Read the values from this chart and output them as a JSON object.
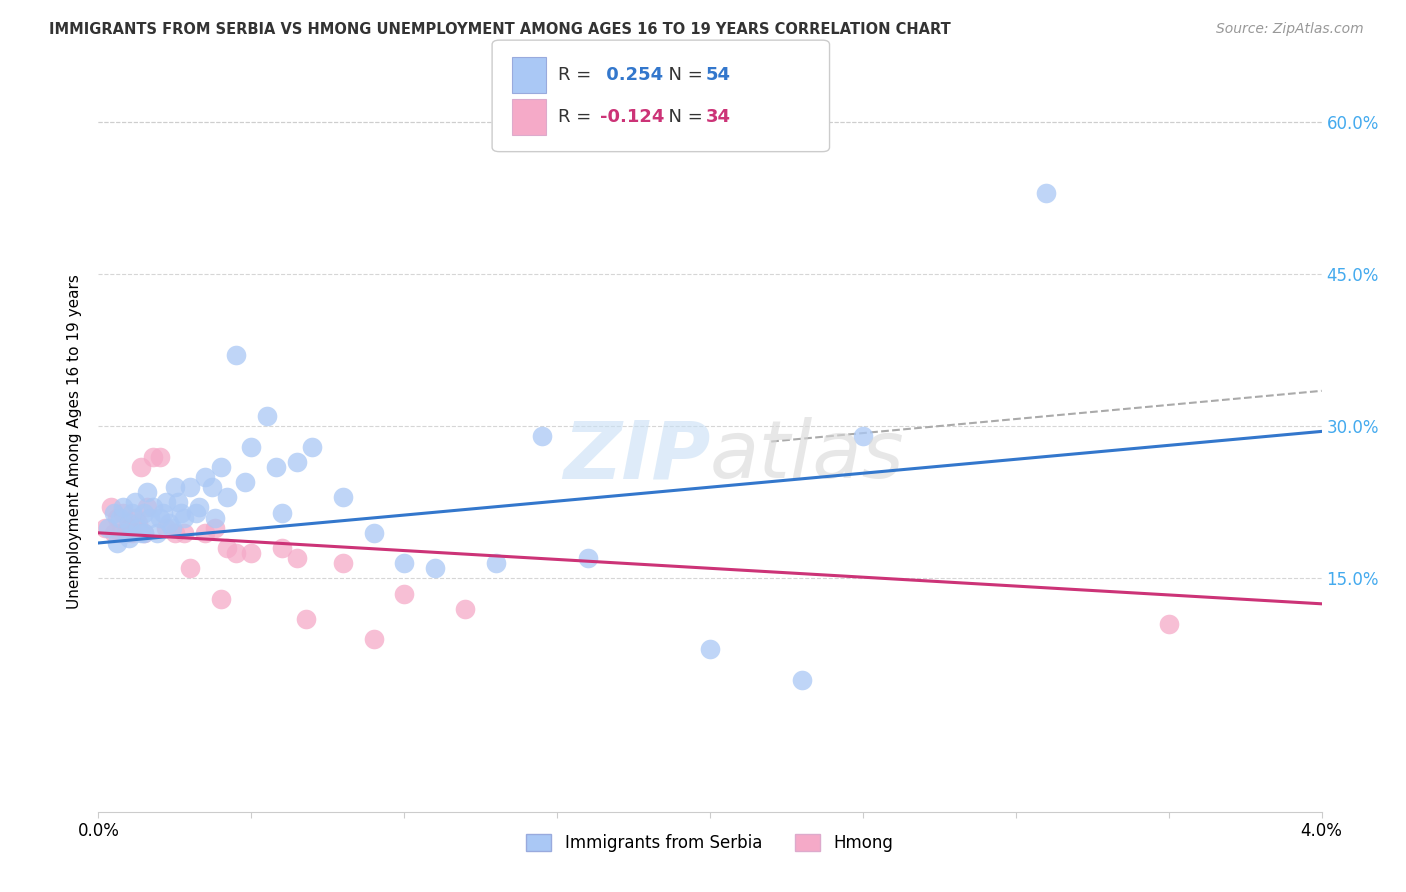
{
  "title": "IMMIGRANTS FROM SERBIA VS HMONG UNEMPLOYMENT AMONG AGES 16 TO 19 YEARS CORRELATION CHART",
  "source": "Source: ZipAtlas.com",
  "ylabel": "Unemployment Among Ages 16 to 19 years",
  "y_ticks": [
    "15.0%",
    "30.0%",
    "45.0%",
    "60.0%"
  ],
  "y_tick_vals": [
    0.15,
    0.3,
    0.45,
    0.6
  ],
  "x_range": [
    0.0,
    0.04
  ],
  "y_range": [
    -0.08,
    0.65
  ],
  "serbia_R": 0.254,
  "serbia_N": 54,
  "hmong_R": -0.124,
  "hmong_N": 34,
  "serbia_color": "#aac8f5",
  "hmong_color": "#f5aac8",
  "serbia_line_color": "#3377cc",
  "hmong_line_color": "#cc3377",
  "serbia_line_y0": 0.185,
  "serbia_line_y1": 0.295,
  "hmong_line_y0": 0.195,
  "hmong_line_y1": 0.125,
  "dash_line_x0": 0.022,
  "dash_line_x1": 0.04,
  "dash_line_y0": 0.285,
  "dash_line_y1": 0.335,
  "serbia_x": [
    0.0003,
    0.0005,
    0.0006,
    0.0007,
    0.0008,
    0.0009,
    0.001,
    0.001,
    0.0011,
    0.0012,
    0.0013,
    0.0014,
    0.0015,
    0.0015,
    0.0016,
    0.0017,
    0.0018,
    0.0019,
    0.002,
    0.0021,
    0.0022,
    0.0023,
    0.0024,
    0.0025,
    0.0026,
    0.0027,
    0.0028,
    0.003,
    0.0032,
    0.0033,
    0.0035,
    0.0037,
    0.0038,
    0.004,
    0.0042,
    0.0045,
    0.0048,
    0.005,
    0.0055,
    0.0058,
    0.006,
    0.0065,
    0.007,
    0.008,
    0.009,
    0.01,
    0.011,
    0.013,
    0.0145,
    0.016,
    0.02,
    0.025,
    0.023,
    0.031
  ],
  "serbia_y": [
    0.2,
    0.215,
    0.185,
    0.21,
    0.22,
    0.195,
    0.19,
    0.205,
    0.215,
    0.225,
    0.2,
    0.195,
    0.195,
    0.215,
    0.235,
    0.21,
    0.22,
    0.195,
    0.21,
    0.215,
    0.225,
    0.205,
    0.2,
    0.24,
    0.225,
    0.215,
    0.21,
    0.24,
    0.215,
    0.22,
    0.25,
    0.24,
    0.21,
    0.26,
    0.23,
    0.37,
    0.245,
    0.28,
    0.31,
    0.26,
    0.215,
    0.265,
    0.28,
    0.23,
    0.195,
    0.165,
    0.16,
    0.165,
    0.29,
    0.17,
    0.08,
    0.29,
    0.05,
    0.53
  ],
  "hmong_x": [
    0.0002,
    0.0004,
    0.0005,
    0.0006,
    0.0007,
    0.0008,
    0.0009,
    0.001,
    0.0011,
    0.0012,
    0.0013,
    0.0014,
    0.0015,
    0.0016,
    0.0018,
    0.002,
    0.0022,
    0.0025,
    0.0028,
    0.003,
    0.0035,
    0.0038,
    0.004,
    0.0042,
    0.0045,
    0.005,
    0.006,
    0.0065,
    0.0068,
    0.008,
    0.009,
    0.01,
    0.012,
    0.035
  ],
  "hmong_y": [
    0.2,
    0.22,
    0.195,
    0.21,
    0.195,
    0.215,
    0.195,
    0.2,
    0.195,
    0.21,
    0.205,
    0.26,
    0.195,
    0.22,
    0.27,
    0.27,
    0.2,
    0.195,
    0.195,
    0.16,
    0.195,
    0.2,
    0.13,
    0.18,
    0.175,
    0.175,
    0.18,
    0.17,
    0.11,
    0.165,
    0.09,
    0.135,
    0.12,
    0.105
  ],
  "watermark_zip": "ZIP",
  "watermark_atlas": "atlas",
  "grid_color": "#cccccc"
}
